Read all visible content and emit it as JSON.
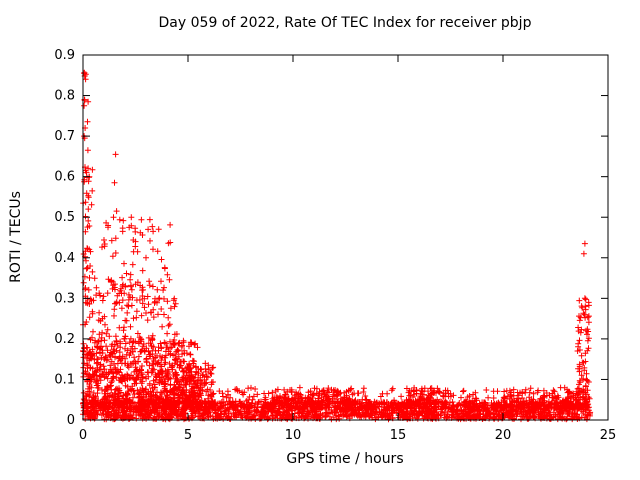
{
  "figure": {
    "background": "#ffffff"
  },
  "chart_data": {
    "type": "scatter",
    "title": "Day 059 of 2022, Rate Of TEC Index for receiver pbjp",
    "xlabel": "GPS time / hours",
    "ylabel": "ROTI / TECUs",
    "xlim": [
      0,
      25
    ],
    "ylim": [
      0,
      0.9
    ],
    "xticks": [
      0,
      5,
      10,
      15,
      20,
      25
    ],
    "yticks": [
      0,
      0.1,
      0.2,
      0.3,
      0.4,
      0.5,
      0.6,
      0.7,
      0.8,
      0.9
    ],
    "grid": false,
    "legend": "none",
    "marker": "plus",
    "marker_color": "#ff0000",
    "axis_color": "#000000",
    "seed": 2022059,
    "point_clusters": [
      {
        "x": [
          0.0,
          24.15
        ],
        "y": [
          0.002,
          0.045
        ],
        "count": 2000,
        "pow": 1
      },
      {
        "x": [
          0.0,
          24.15
        ],
        "y": [
          0.03,
          0.08
        ],
        "count": 500,
        "pow": 2
      },
      {
        "x": [
          0.0,
          5.5
        ],
        "y": [
          0.04,
          0.2
        ],
        "count": 600,
        "pow": 1.8
      },
      {
        "x": [
          0.0,
          4.5
        ],
        "y": [
          0.1,
          0.35
        ],
        "count": 260,
        "pow": 1.6
      },
      {
        "x": [
          0.8,
          4.2
        ],
        "y": [
          0.28,
          0.5
        ],
        "count": 80,
        "pow": 1.4
      },
      {
        "x": [
          0.0,
          0.45
        ],
        "y": [
          0.25,
          0.62
        ],
        "count": 40,
        "pow": 1
      },
      {
        "x": [
          0.02,
          0.3
        ],
        "y": [
          0.6,
          0.86
        ],
        "count": 10,
        "pow": 1
      },
      {
        "x": [
          4.3,
          6.2
        ],
        "y": [
          0.04,
          0.14
        ],
        "count": 140,
        "pow": 1.5
      },
      {
        "x": [
          23.55,
          24.1
        ],
        "y": [
          0.05,
          0.3
        ],
        "count": 70,
        "pow": 1.6
      },
      {
        "x": [
          9.0,
          13.0
        ],
        "y": [
          0.04,
          0.075
        ],
        "count": 140,
        "pow": 1.5
      },
      {
        "x": [
          15.5,
          17.5
        ],
        "y": [
          0.04,
          0.08
        ],
        "count": 90,
        "pow": 1.5
      },
      {
        "x": [
          20.0,
          23.5
        ],
        "y": [
          0.035,
          0.07
        ],
        "count": 90,
        "pow": 1.5
      }
    ],
    "outlier_points": [
      [
        0.05,
        0.855
      ],
      [
        0.07,
        0.79
      ],
      [
        0.05,
        0.775
      ],
      [
        0.1,
        0.72
      ],
      [
        0.05,
        0.7
      ],
      [
        0.08,
        0.695
      ],
      [
        0.12,
        0.615
      ],
      [
        0.3,
        0.6
      ],
      [
        1.55,
        0.655
      ],
      [
        1.5,
        0.585
      ],
      [
        1.6,
        0.515
      ],
      [
        1.45,
        0.5
      ],
      [
        2.3,
        0.5
      ],
      [
        0.25,
        0.52
      ],
      [
        2.2,
        0.475
      ],
      [
        2.5,
        0.44
      ],
      [
        2.6,
        0.415
      ],
      [
        3.0,
        0.4
      ],
      [
        3.1,
        0.47
      ],
      [
        23.9,
        0.435
      ],
      [
        23.85,
        0.41
      ],
      [
        23.9,
        0.3
      ],
      [
        23.92,
        0.28
      ],
      [
        23.88,
        0.26
      ],
      [
        23.95,
        0.22
      ]
    ]
  }
}
